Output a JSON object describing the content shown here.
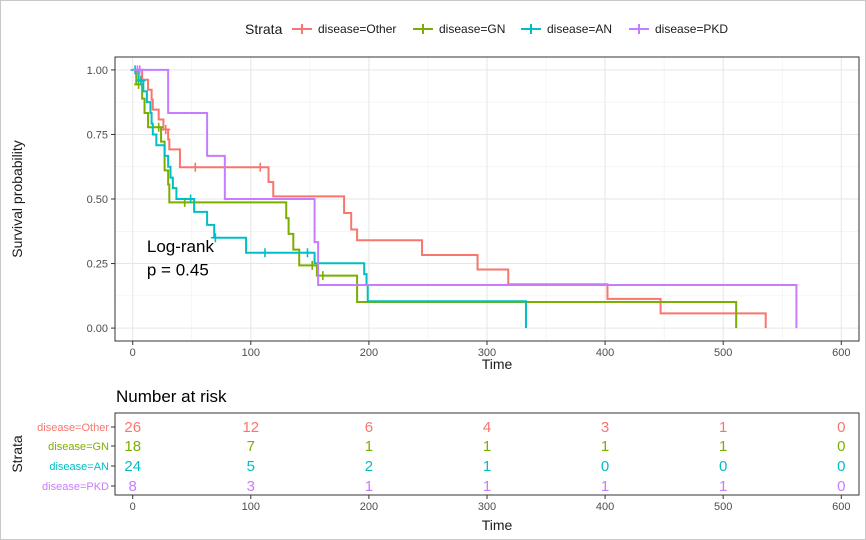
{
  "chart_data": [
    {
      "type": "line",
      "subtype": "kaplan-meier",
      "xlabel": "Time",
      "ylabel": "Survival probability",
      "xlim": [
        -15,
        615
      ],
      "ylim": [
        -0.05,
        1.05
      ],
      "x_ticks": [
        0,
        100,
        200,
        300,
        400,
        500,
        600
      ],
      "y_ticks": [
        0.0,
        0.25,
        0.5,
        0.75,
        1.0
      ],
      "y_tick_labels": [
        "0.00",
        "0.25",
        "0.50",
        "0.75",
        "1.00"
      ],
      "grid": true,
      "legend": {
        "title": "Strata",
        "position": "top",
        "entries": [
          "disease=Other",
          "disease=GN",
          "disease=AN",
          "disease=PKD"
        ]
      },
      "annotation": {
        "line1": "Log-rank",
        "line2": "p = 0.45",
        "x": 12,
        "y": 0.2
      },
      "series": [
        {
          "name": "disease=Other",
          "color": "#F8766D",
          "steps": [
            [
              0,
              1.0
            ],
            [
              8,
              0.962
            ],
            [
              13,
              0.923
            ],
            [
              16,
              0.885
            ],
            [
              17,
              0.846
            ],
            [
              22,
              0.808
            ],
            [
              26,
              0.769
            ],
            [
              30,
              0.731
            ],
            [
              31,
              0.692
            ],
            [
              40,
              0.623
            ],
            [
              115,
              0.566
            ],
            [
              119,
              0.51
            ],
            [
              153,
              0.51
            ],
            [
              179,
              0.446
            ],
            [
              185,
              0.382
            ],
            [
              190,
              0.34
            ],
            [
              245,
              0.283
            ],
            [
              292,
              0.227
            ],
            [
              318,
              0.17
            ],
            [
              402,
              0.113
            ],
            [
              447,
              0.057
            ],
            [
              536,
              0.0
            ]
          ],
          "censor": [
            [
              7,
              0.962
            ],
            [
              28,
              0.769
            ],
            [
              53,
              0.623
            ],
            [
              108,
              0.623
            ]
          ]
        },
        {
          "name": "disease=GN",
          "color": "#7CAE00",
          "steps": [
            [
              0,
              1.0
            ],
            [
              3,
              0.944
            ],
            [
              8,
              0.889
            ],
            [
              10,
              0.833
            ],
            [
              13,
              0.778
            ],
            [
              24,
              0.722
            ],
            [
              27,
              0.611
            ],
            [
              30,
              0.556
            ],
            [
              31,
              0.487
            ],
            [
              130,
              0.426
            ],
            [
              132,
              0.365
            ],
            [
              136,
              0.304
            ],
            [
              141,
              0.243
            ],
            [
              156,
              0.203
            ],
            [
              190,
              0.101
            ],
            [
              511,
              0.0
            ]
          ],
          "censor": [
            [
              5,
              0.944
            ],
            [
              22,
              0.778
            ],
            [
              44,
              0.487
            ],
            [
              152,
              0.243
            ],
            [
              161,
              0.203
            ]
          ]
        },
        {
          "name": "disease=AN",
          "color": "#00BFC4",
          "steps": [
            [
              0,
              1.0
            ],
            [
              5,
              0.958
            ],
            [
              9,
              0.917
            ],
            [
              12,
              0.875
            ],
            [
              15,
              0.833
            ],
            [
              16,
              0.792
            ],
            [
              17,
              0.75
            ],
            [
              20,
              0.708
            ],
            [
              27,
              0.667
            ],
            [
              30,
              0.625
            ],
            [
              32,
              0.583
            ],
            [
              34,
              0.542
            ],
            [
              37,
              0.5
            ],
            [
              45,
              0.5
            ],
            [
              52,
              0.45
            ],
            [
              63,
              0.4
            ],
            [
              69,
              0.35
            ],
            [
              96,
              0.292
            ],
            [
              149,
              0.292
            ],
            [
              154,
              0.251
            ],
            [
              196,
              0.209
            ],
            [
              198,
              0.167
            ],
            [
              199,
              0.104
            ],
            [
              333,
              0.0
            ]
          ],
          "censor": [
            [
              2,
              1.0
            ],
            [
              7,
              0.958
            ],
            [
              49,
              0.5
            ],
            [
              70,
              0.35
            ],
            [
              112,
              0.292
            ],
            [
              148,
              0.292
            ]
          ]
        },
        {
          "name": "disease=PKD",
          "color": "#C77CFF",
          "steps": [
            [
              0,
              1.0
            ],
            [
              6,
              1.0
            ],
            [
              30,
              0.833
            ],
            [
              63,
              0.667
            ],
            [
              78,
              0.5
            ],
            [
              152,
              0.5
            ],
            [
              154,
              0.333
            ],
            [
              157,
              0.167
            ],
            [
              562,
              0.0
            ]
          ],
          "censor": [
            [
              4,
              1.0
            ],
            [
              6,
              1.0
            ]
          ]
        }
      ]
    },
    {
      "type": "table",
      "title": "Number at risk",
      "xlabel": "Time",
      "ylabel": "Strata",
      "x_ticks": [
        0,
        100,
        200,
        300,
        400,
        500,
        600
      ],
      "rows": [
        {
          "name": "disease=Other",
          "color": "#F8766D",
          "values": [
            "26",
            "12",
            "6",
            "4",
            "3",
            "1",
            "0"
          ]
        },
        {
          "name": "disease=GN",
          "color": "#7CAE00",
          "values": [
            "18",
            "7",
            "1",
            "1",
            "1",
            "1",
            "0"
          ]
        },
        {
          "name": "disease=AN",
          "color": "#00BFC4",
          "values": [
            "24",
            "5",
            "2",
            "1",
            "0",
            "0",
            "0"
          ]
        },
        {
          "name": "disease=PKD",
          "color": "#C77CFF",
          "values": [
            "8",
            "3",
            "1",
            "1",
            "1",
            "1",
            "0"
          ]
        }
      ]
    }
  ]
}
